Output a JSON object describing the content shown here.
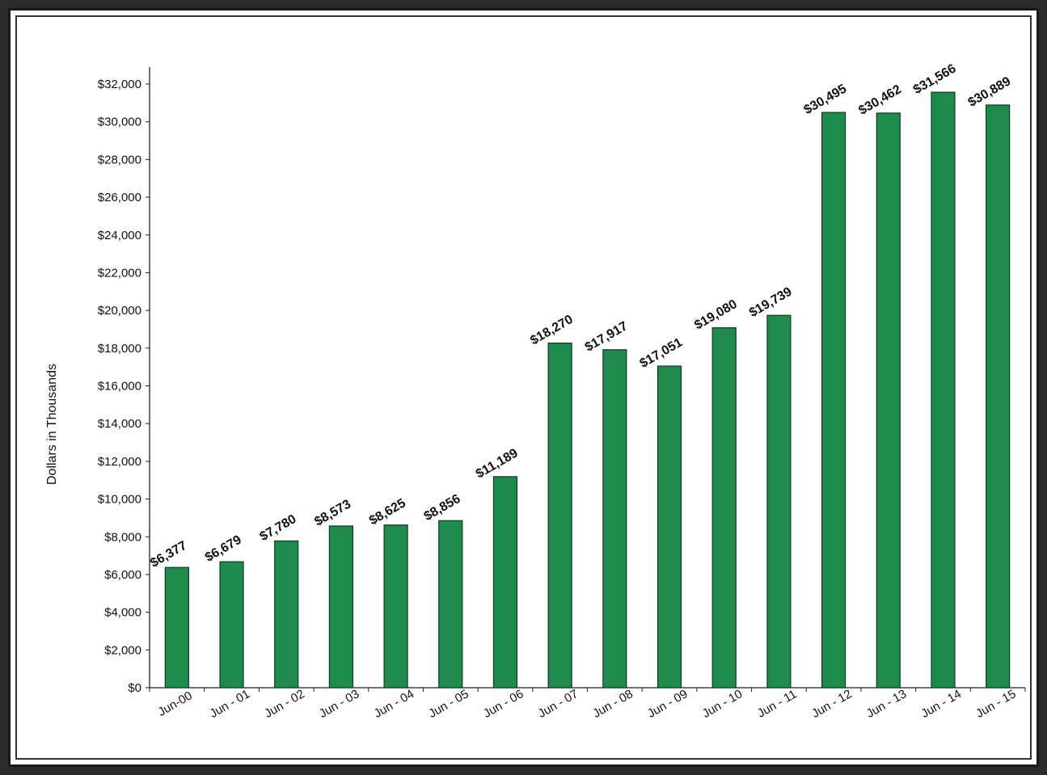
{
  "chart_data": {
    "type": "bar",
    "ylabel": "Dollars in Thousands",
    "xlabel": "",
    "title": "",
    "ylim": [
      0,
      32000
    ],
    "ytick_step": 2000,
    "ytick_labels": [
      "$0",
      "$2,000",
      "$4,000",
      "$6,000",
      "$8,000",
      "$10,000",
      "$12,000",
      "$14,000",
      "$16,000",
      "$18,000",
      "$20,000",
      "$22,000",
      "$24,000",
      "$26,000",
      "$28,000",
      "$30,000",
      "$32,000"
    ],
    "categories": [
      "Jun-00",
      "Jun - 01",
      "Jun - 02",
      "Jun - 03",
      "Jun - 04",
      "Jun - 05",
      "Jun - 06",
      "Jun - 07",
      "Jun - 08",
      "Jun - 09",
      "Jun - 10",
      "Jun - 11",
      "Jun - 12",
      "Jun - 13",
      "Jun - 14",
      "Jun - 15"
    ],
    "values": [
      6377,
      6679,
      7780,
      8573,
      8625,
      8856,
      11189,
      18270,
      17917,
      17051,
      19080,
      19739,
      30495,
      30462,
      31566,
      30889
    ],
    "data_labels": [
      "$6,377",
      "$6,679",
      "$7,780",
      "$8,573",
      "$8,625",
      "$8,856",
      "$11,189",
      "$18,270",
      "$17,917",
      "$17,051",
      "$19,080",
      "$19,739",
      "$30,495",
      "$30,462",
      "$31,566",
      "$30,889"
    ],
    "grid": false,
    "legend": "none",
    "colors": {
      "bar": "#1e8a4c",
      "bar_edge": "#0d3d22"
    }
  }
}
